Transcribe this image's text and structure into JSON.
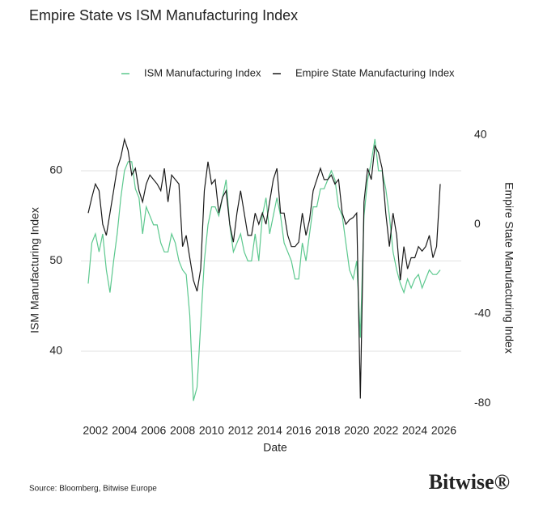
{
  "chart_data": {
    "type": "line",
    "title": "Empire State vs ISM Manufacturing Index",
    "x_label": "Date",
    "y_label": "ISM Manufacturing Index",
    "y2_label": "Empire State Manufacturing Index",
    "x": [
      2001.5,
      2001.75,
      2002,
      2002.25,
      2002.5,
      2002.75,
      2003,
      2003.25,
      2003.5,
      2003.75,
      2004,
      2004.25,
      2004.5,
      2004.75,
      2005,
      2005.25,
      2005.5,
      2005.75,
      2006,
      2006.25,
      2006.5,
      2006.75,
      2007,
      2007.25,
      2007.5,
      2007.75,
      2008,
      2008.25,
      2008.5,
      2008.75,
      2009,
      2009.25,
      2009.5,
      2009.75,
      2010,
      2010.25,
      2010.5,
      2010.75,
      2011,
      2011.25,
      2011.5,
      2011.75,
      2012,
      2012.25,
      2012.5,
      2012.75,
      2013,
      2013.25,
      2013.5,
      2013.75,
      2014,
      2014.25,
      2014.5,
      2014.75,
      2015,
      2015.25,
      2015.5,
      2015.75,
      2016,
      2016.25,
      2016.5,
      2016.75,
      2017,
      2017.25,
      2017.5,
      2017.75,
      2018,
      2018.25,
      2018.5,
      2018.75,
      2019,
      2019.25,
      2019.5,
      2019.75,
      2020,
      2020.25,
      2020.5,
      2020.75,
      2021,
      2021.25,
      2021.5,
      2021.75,
      2022,
      2022.25,
      2022.5,
      2022.75,
      2023,
      2023.25,
      2023.5,
      2023.75,
      2024,
      2024.25,
      2024.5,
      2024.75,
      2025,
      2025.25,
      2025.5,
      2025.75
    ],
    "series": [
      {
        "name": "ISM Manufacturing Index",
        "color": "#5cc88e",
        "axis": "y",
        "values": [
          47.5,
          52,
          53,
          51,
          53,
          49,
          46.5,
          50,
          53,
          57,
          60,
          61,
          61,
          58,
          57,
          53,
          56,
          55,
          54,
          54,
          52,
          51,
          51,
          53,
          52,
          50,
          49,
          48.5,
          44,
          34.5,
          36,
          43,
          50,
          54,
          56,
          56,
          55,
          57,
          59,
          54,
          51,
          52,
          53,
          51,
          50,
          50,
          53,
          50,
          55,
          57,
          53,
          55,
          57,
          55,
          52,
          51,
          50,
          48,
          48,
          52,
          50,
          53,
          56,
          56,
          58,
          58,
          59,
          60,
          59,
          56,
          55,
          52,
          49,
          48,
          50,
          41.5,
          55,
          59,
          61,
          63.5,
          60,
          60,
          58,
          55,
          51,
          49,
          47.5,
          46.5,
          48,
          47,
          48,
          48.5,
          47,
          48,
          49,
          48.5,
          48.5,
          49
        ]
      },
      {
        "name": "Empire State Manufacturing Index",
        "color": "#1a1a1a",
        "axis": "y2",
        "values": [
          5,
          12,
          18,
          15,
          0,
          -5,
          5,
          15,
          25,
          30,
          38,
          33,
          22,
          25,
          15,
          10,
          18,
          22,
          20,
          18,
          15,
          25,
          10,
          22,
          20,
          18,
          -10,
          -5,
          -15,
          -25,
          -30,
          -20,
          15,
          28,
          18,
          20,
          5,
          12,
          15,
          0,
          -8,
          5,
          15,
          5,
          -5,
          -5,
          5,
          0,
          5,
          0,
          10,
          20,
          25,
          5,
          5,
          -5,
          -10,
          -10,
          -8,
          5,
          -5,
          2,
          15,
          20,
          25,
          20,
          20,
          22,
          18,
          20,
          5,
          0,
          2,
          3,
          5,
          -78,
          10,
          25,
          20,
          35,
          32,
          25,
          5,
          -10,
          5,
          -5,
          -25,
          -10,
          -20,
          -15,
          -15,
          -10,
          -12,
          -10,
          -5,
          -15,
          -10,
          18
        ]
      }
    ],
    "xlim": [
      2001,
      2027.2
    ],
    "xticks": [
      2002,
      2004,
      2006,
      2008,
      2010,
      2012,
      2014,
      2016,
      2018,
      2020,
      2022,
      2024,
      2026
    ],
    "ylim": [
      34.08,
      64.57
    ],
    "yticks": [
      40,
      50,
      60
    ],
    "y2lim": [
      -80.7,
      42.4
    ],
    "y2ticks": [
      40,
      0,
      -40,
      -80
    ],
    "grid": true
  },
  "source": "Source: Bloomberg, Bitwise Europe",
  "logo": "Bitwise®"
}
